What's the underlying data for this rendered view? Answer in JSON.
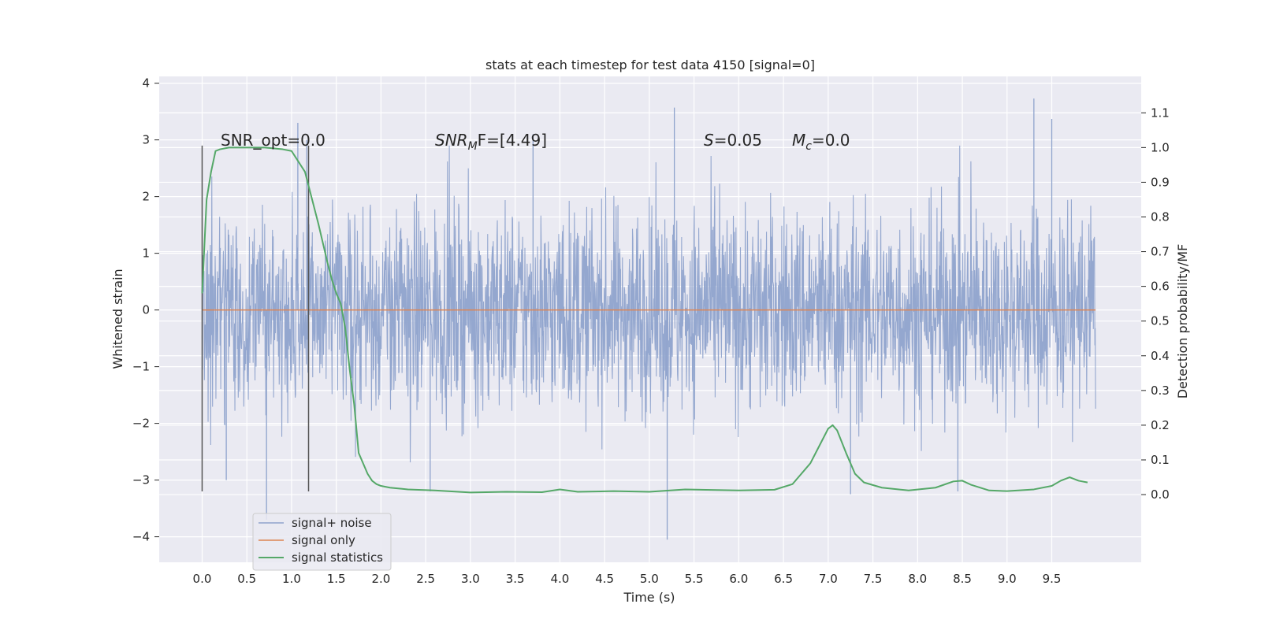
{
  "chart_data": {
    "type": "line",
    "title": "stats at each timestep for test data 4150 [signal=0]",
    "xlabel": "Time (s)",
    "ylabel": "Whitened strain",
    "y2label": "Detection probability/MF",
    "xlim": [
      -0.48,
      10.5
    ],
    "ylim": [
      -4.45,
      4.12
    ],
    "y2lim": [
      -0.195,
      1.205
    ],
    "x_ticks": [
      "0.0",
      "0.5",
      "1.0",
      "1.5",
      "2.0",
      "2.5",
      "3.0",
      "3.5",
      "4.0",
      "4.5",
      "5.0",
      "5.5",
      "6.0",
      "6.5",
      "7.0",
      "7.5",
      "8.0",
      "8.5",
      "9.0",
      "9.5"
    ],
    "y_ticks": [
      "4",
      "3",
      "2",
      "1",
      "0",
      "−1",
      "−2",
      "−3",
      "−4"
    ],
    "y2_ticks": [
      "1.1",
      "1.0",
      "0.9",
      "0.8",
      "0.7",
      "0.6",
      "0.5",
      "0.4",
      "0.3",
      "0.2",
      "0.1",
      "0.0"
    ],
    "grid": true,
    "legend_position": "lower-left",
    "series": [
      {
        "name": "signal+ noise",
        "axis": "left",
        "color": "#8fa3cc",
        "description": "dense whitened noise, roughly within ±1.6 with spikes up to ±3.7",
        "x_range": [
          0.0,
          9.99
        ],
        "envelope_abs": 1.55,
        "spikes": [
          {
            "x": 0.72,
            "y": -3.7
          },
          {
            "x": 1.07,
            "y": 3.3
          },
          {
            "x": 1.17,
            "y": 3.0
          },
          {
            "x": 3.7,
            "y": 3.1
          },
          {
            "x": 5.28,
            "y": 3.57
          },
          {
            "x": 5.2,
            "y": -4.05
          },
          {
            "x": 7.25,
            "y": -3.25
          },
          {
            "x": 8.45,
            "y": -3.2
          },
          {
            "x": 9.3,
            "y": 3.73
          },
          {
            "x": 9.5,
            "y": 3.37
          },
          {
            "x": 0.27,
            "y": -3.0
          },
          {
            "x": 2.55,
            "y": -3.2
          }
        ]
      },
      {
        "name": "signal only",
        "axis": "left",
        "color": "#dd8452",
        "x": [
          0.0,
          9.99
        ],
        "y": [
          0.0,
          0.0
        ]
      },
      {
        "name": "signal statistics",
        "axis": "right",
        "color": "#55a868",
        "x": [
          0.0,
          0.05,
          0.1,
          0.15,
          0.2,
          0.3,
          0.5,
          0.7,
          0.9,
          1.0,
          1.05,
          1.1,
          1.15,
          1.2,
          1.3,
          1.4,
          1.45,
          1.5,
          1.55,
          1.6,
          1.65,
          1.7,
          1.75,
          1.8,
          1.85,
          1.9,
          1.95,
          2.0,
          2.1,
          2.3,
          2.6,
          3.0,
          3.4,
          3.8,
          4.0,
          4.2,
          4.6,
          5.0,
          5.4,
          6.0,
          6.4,
          6.6,
          6.8,
          6.9,
          7.0,
          7.05,
          7.1,
          7.2,
          7.3,
          7.4,
          7.6,
          7.9,
          8.2,
          8.4,
          8.5,
          8.6,
          8.8,
          9.0,
          9.3,
          9.5,
          9.6,
          9.7,
          9.8,
          9.9
        ],
        "y": [
          0.58,
          0.85,
          0.93,
          0.99,
          0.995,
          1.0,
          1.0,
          1.0,
          0.995,
          0.99,
          0.97,
          0.95,
          0.93,
          0.88,
          0.78,
          0.67,
          0.62,
          0.58,
          0.55,
          0.48,
          0.36,
          0.26,
          0.12,
          0.09,
          0.06,
          0.04,
          0.03,
          0.025,
          0.02,
          0.015,
          0.012,
          0.006,
          0.008,
          0.007,
          0.015,
          0.008,
          0.01,
          0.008,
          0.015,
          0.012,
          0.014,
          0.03,
          0.09,
          0.14,
          0.19,
          0.2,
          0.185,
          0.12,
          0.06,
          0.035,
          0.02,
          0.012,
          0.02,
          0.038,
          0.04,
          0.028,
          0.012,
          0.01,
          0.015,
          0.025,
          0.04,
          0.05,
          0.04,
          0.035
        ]
      }
    ],
    "vlines": [
      {
        "x": 0.0,
        "ymin": -3.2,
        "ymax": 2.9,
        "color": "#555555"
      },
      {
        "x": 1.19,
        "ymin": -3.2,
        "ymax": 2.9,
        "color": "#555555"
      }
    ],
    "annotations": [
      {
        "key": "snr_opt",
        "text": "SNR_opt=0.0",
        "x": 0.2,
        "y": 3.0
      },
      {
        "key": "snr_mf",
        "text": "SNR_MF=[4.49]",
        "x": 2.6,
        "y": 3.0
      },
      {
        "key": "s",
        "text": "S=0.05",
        "x": 5.6,
        "y": 3.0
      },
      {
        "key": "mc",
        "text": "M_c=0.0",
        "x": 6.6,
        "y": 3.0
      }
    ]
  },
  "annotation_parts": {
    "snr_opt": {
      "text": "SNR_opt=0.0"
    },
    "snr_mf": {
      "base": "SNR",
      "sub": "M",
      "rest": "F=[4.49]"
    },
    "s": {
      "base": "S",
      "rest": "=0.05"
    },
    "mc": {
      "base": "M",
      "sub": "c",
      "rest": "=0.0"
    }
  },
  "colors": {
    "background": "#eaeaf2",
    "grid": "#ffffff",
    "text": "#262626"
  }
}
